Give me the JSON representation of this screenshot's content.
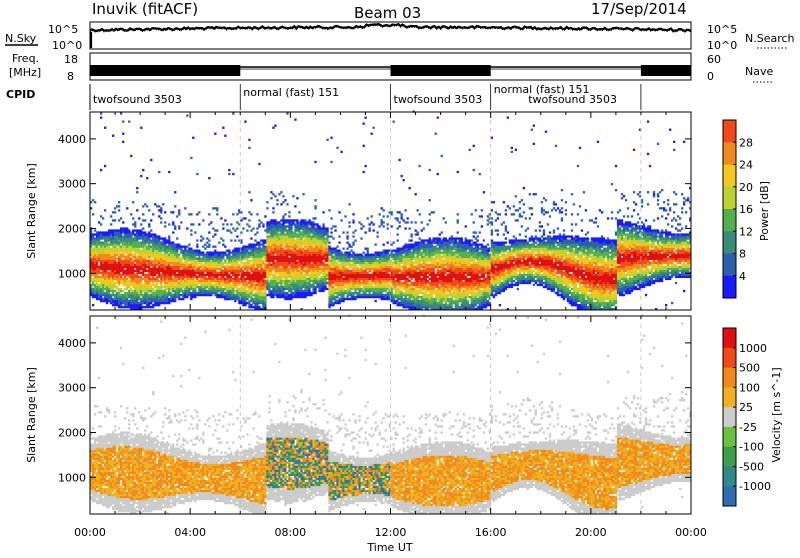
{
  "header": {
    "station": "Inuvik (fitACF)",
    "beam": "Beam 03",
    "date": "17/Sep/2014"
  },
  "top_panel": {
    "nsky_label": "N.Sky",
    "nsearch_label": "N.Search",
    "freq_label_line1": "Freq.",
    "freq_label_line2": "[MHz]",
    "nave_label": "Nave",
    "cpid_label": "CPID",
    "left_ticks_sky": [
      "10^5",
      "10^0"
    ],
    "right_ticks_sky": [
      "10^5",
      "10^0"
    ],
    "left_ticks_freq": [
      "18",
      "8"
    ],
    "right_ticks_freq": [
      "60",
      "0"
    ],
    "cpid_segments": [
      {
        "label": "twofsound 3503",
        "start": 0,
        "end": 6
      },
      {
        "label": "normal (fast) 151",
        "start": 6,
        "end": 12
      },
      {
        "label": "twofsound 3503",
        "start": 12,
        "end": 16
      },
      {
        "label": "normal (fast) 151",
        "start": 16,
        "end": 22
      },
      {
        "label": "twofsound 3503",
        "start": 18,
        "end": 22
      }
    ]
  },
  "chart_data": [
    {
      "type": "heatmap",
      "name": "power",
      "ylabel": "Slant Range [km]",
      "xlabel": "Time UT",
      "x_ticks": [
        "00:00",
        "04:00",
        "08:00",
        "12:00",
        "16:00",
        "20:00",
        "00:00"
      ],
      "x_range_hours": [
        0,
        24
      ],
      "y_ticks": [
        1000,
        2000,
        3000,
        4000
      ],
      "ylim": [
        180,
        4600
      ],
      "colorbar_label": "Power [dB]",
      "colorbar_ticks": [
        28,
        24,
        20,
        16,
        12,
        8,
        4
      ],
      "colorbar_range": [
        0,
        32
      ],
      "colorbar_colors": [
        "#1a1aff",
        "#2b5fb0",
        "#3a8a7a",
        "#52b050",
        "#bcd234",
        "#f2c81c",
        "#f08a1c",
        "#ef4a18",
        "#e01010"
      ]
    },
    {
      "type": "heatmap",
      "name": "velocity",
      "ylabel": "Slant Range [km]",
      "xlabel": "Time UT",
      "x_ticks": [
        "00:00",
        "04:00",
        "08:00",
        "12:00",
        "16:00",
        "20:00",
        "00:00"
      ],
      "x_range_hours": [
        0,
        24
      ],
      "y_ticks": [
        1000,
        2000,
        3000,
        4000
      ],
      "ylim": [
        180,
        4600
      ],
      "colorbar_label": "Velocity [m s^-1]",
      "colorbar_ticks": [
        "1000",
        "500",
        "100",
        "25",
        "-25",
        "-100",
        "-500",
        "-1000"
      ],
      "colorbar_colors": [
        "#2233aa",
        "#2f6cb0",
        "#2f8a8a",
        "#3aa04a",
        "#6cc040",
        "#cccccc",
        "#f0b020",
        "#f08a1c",
        "#ef4a18",
        "#e01010"
      ]
    }
  ],
  "axis_title": "Time UT"
}
